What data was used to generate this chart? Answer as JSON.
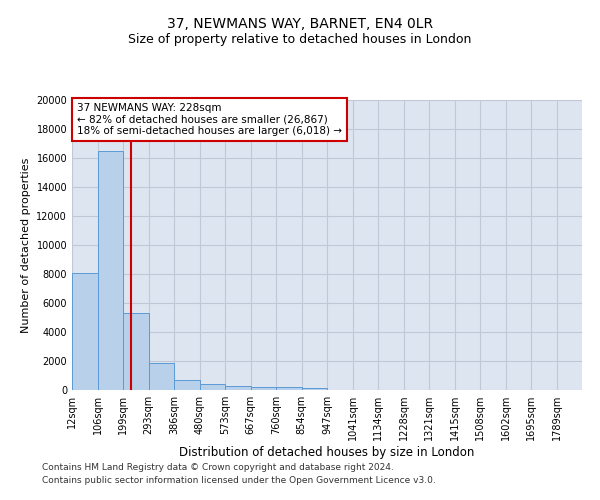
{
  "title1": "37, NEWMANS WAY, BARNET, EN4 0LR",
  "title2": "Size of property relative to detached houses in London",
  "xlabel": "Distribution of detached houses by size in London",
  "ylabel": "Number of detached properties",
  "property_size": 228,
  "annotation_line1": "37 NEWMANS WAY: 228sqm",
  "annotation_line2": "← 82% of detached houses are smaller (26,867)",
  "annotation_line3": "18% of semi-detached houses are larger (6,018) →",
  "footer1": "Contains HM Land Registry data © Crown copyright and database right 2024.",
  "footer2": "Contains public sector information licensed under the Open Government Licence v3.0.",
  "bar_edges": [
    12,
    106,
    199,
    293,
    386,
    480,
    573,
    667,
    760,
    854,
    947,
    1041,
    1134,
    1228,
    1321,
    1415,
    1508,
    1602,
    1695,
    1789,
    1882
  ],
  "bar_heights": [
    8100,
    16500,
    5300,
    1850,
    700,
    380,
    290,
    220,
    200,
    130,
    0,
    0,
    0,
    0,
    0,
    0,
    0,
    0,
    0,
    0
  ],
  "bar_color": "#b8d0ea",
  "bar_edgecolor": "#5b9bd5",
  "vline_x": 228,
  "vline_color": "#cc0000",
  "ylim": [
    0,
    20000
  ],
  "yticks": [
    0,
    2000,
    4000,
    6000,
    8000,
    10000,
    12000,
    14000,
    16000,
    18000,
    20000
  ],
  "grid_color": "#c0c8d8",
  "background_color": "#dde5f0",
  "annotation_box_color": "#cc0000",
  "title1_fontsize": 10,
  "title2_fontsize": 9,
  "xlabel_fontsize": 8.5,
  "ylabel_fontsize": 8,
  "tick_fontsize": 7,
  "annotation_fontsize": 7.5,
  "footer_fontsize": 6.5
}
